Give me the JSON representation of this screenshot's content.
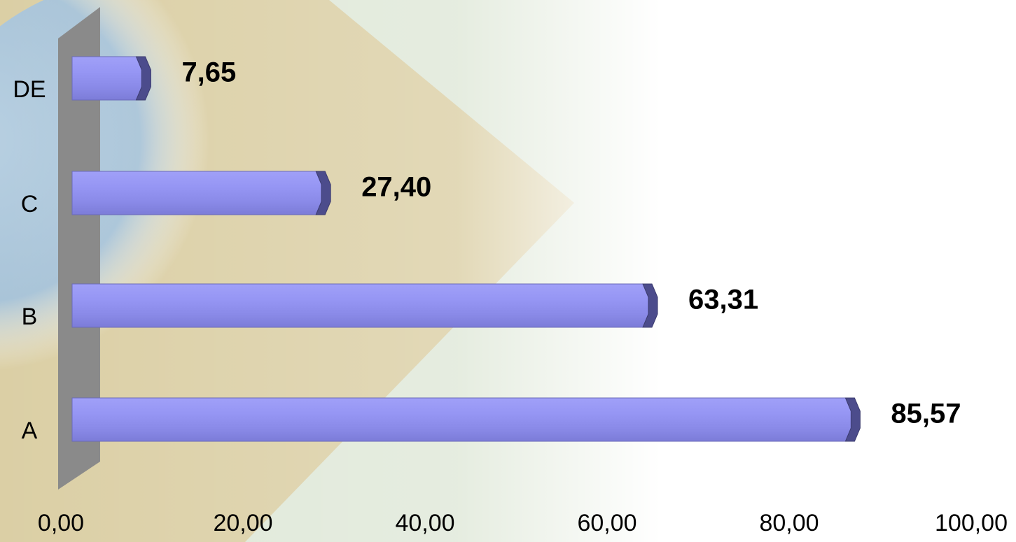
{
  "chart_data": {
    "type": "bar",
    "orientation": "horizontal",
    "categories": [
      "A",
      "B",
      "C",
      "DE"
    ],
    "values": [
      85.57,
      63.31,
      27.4,
      7.65
    ],
    "value_labels": [
      "85,57",
      "63,31",
      "27,40",
      "7,65"
    ],
    "color": "#9090f0",
    "xlim": [
      0,
      100
    ],
    "xticks": [
      {
        "value": 0,
        "label": "0,00"
      },
      {
        "value": 20,
        "label": "20,00"
      },
      {
        "value": 40,
        "label": "40,00"
      },
      {
        "value": 60,
        "label": "60,00"
      },
      {
        "value": 80,
        "label": "80,00"
      },
      {
        "value": 100,
        "label": "100,00"
      }
    ]
  }
}
